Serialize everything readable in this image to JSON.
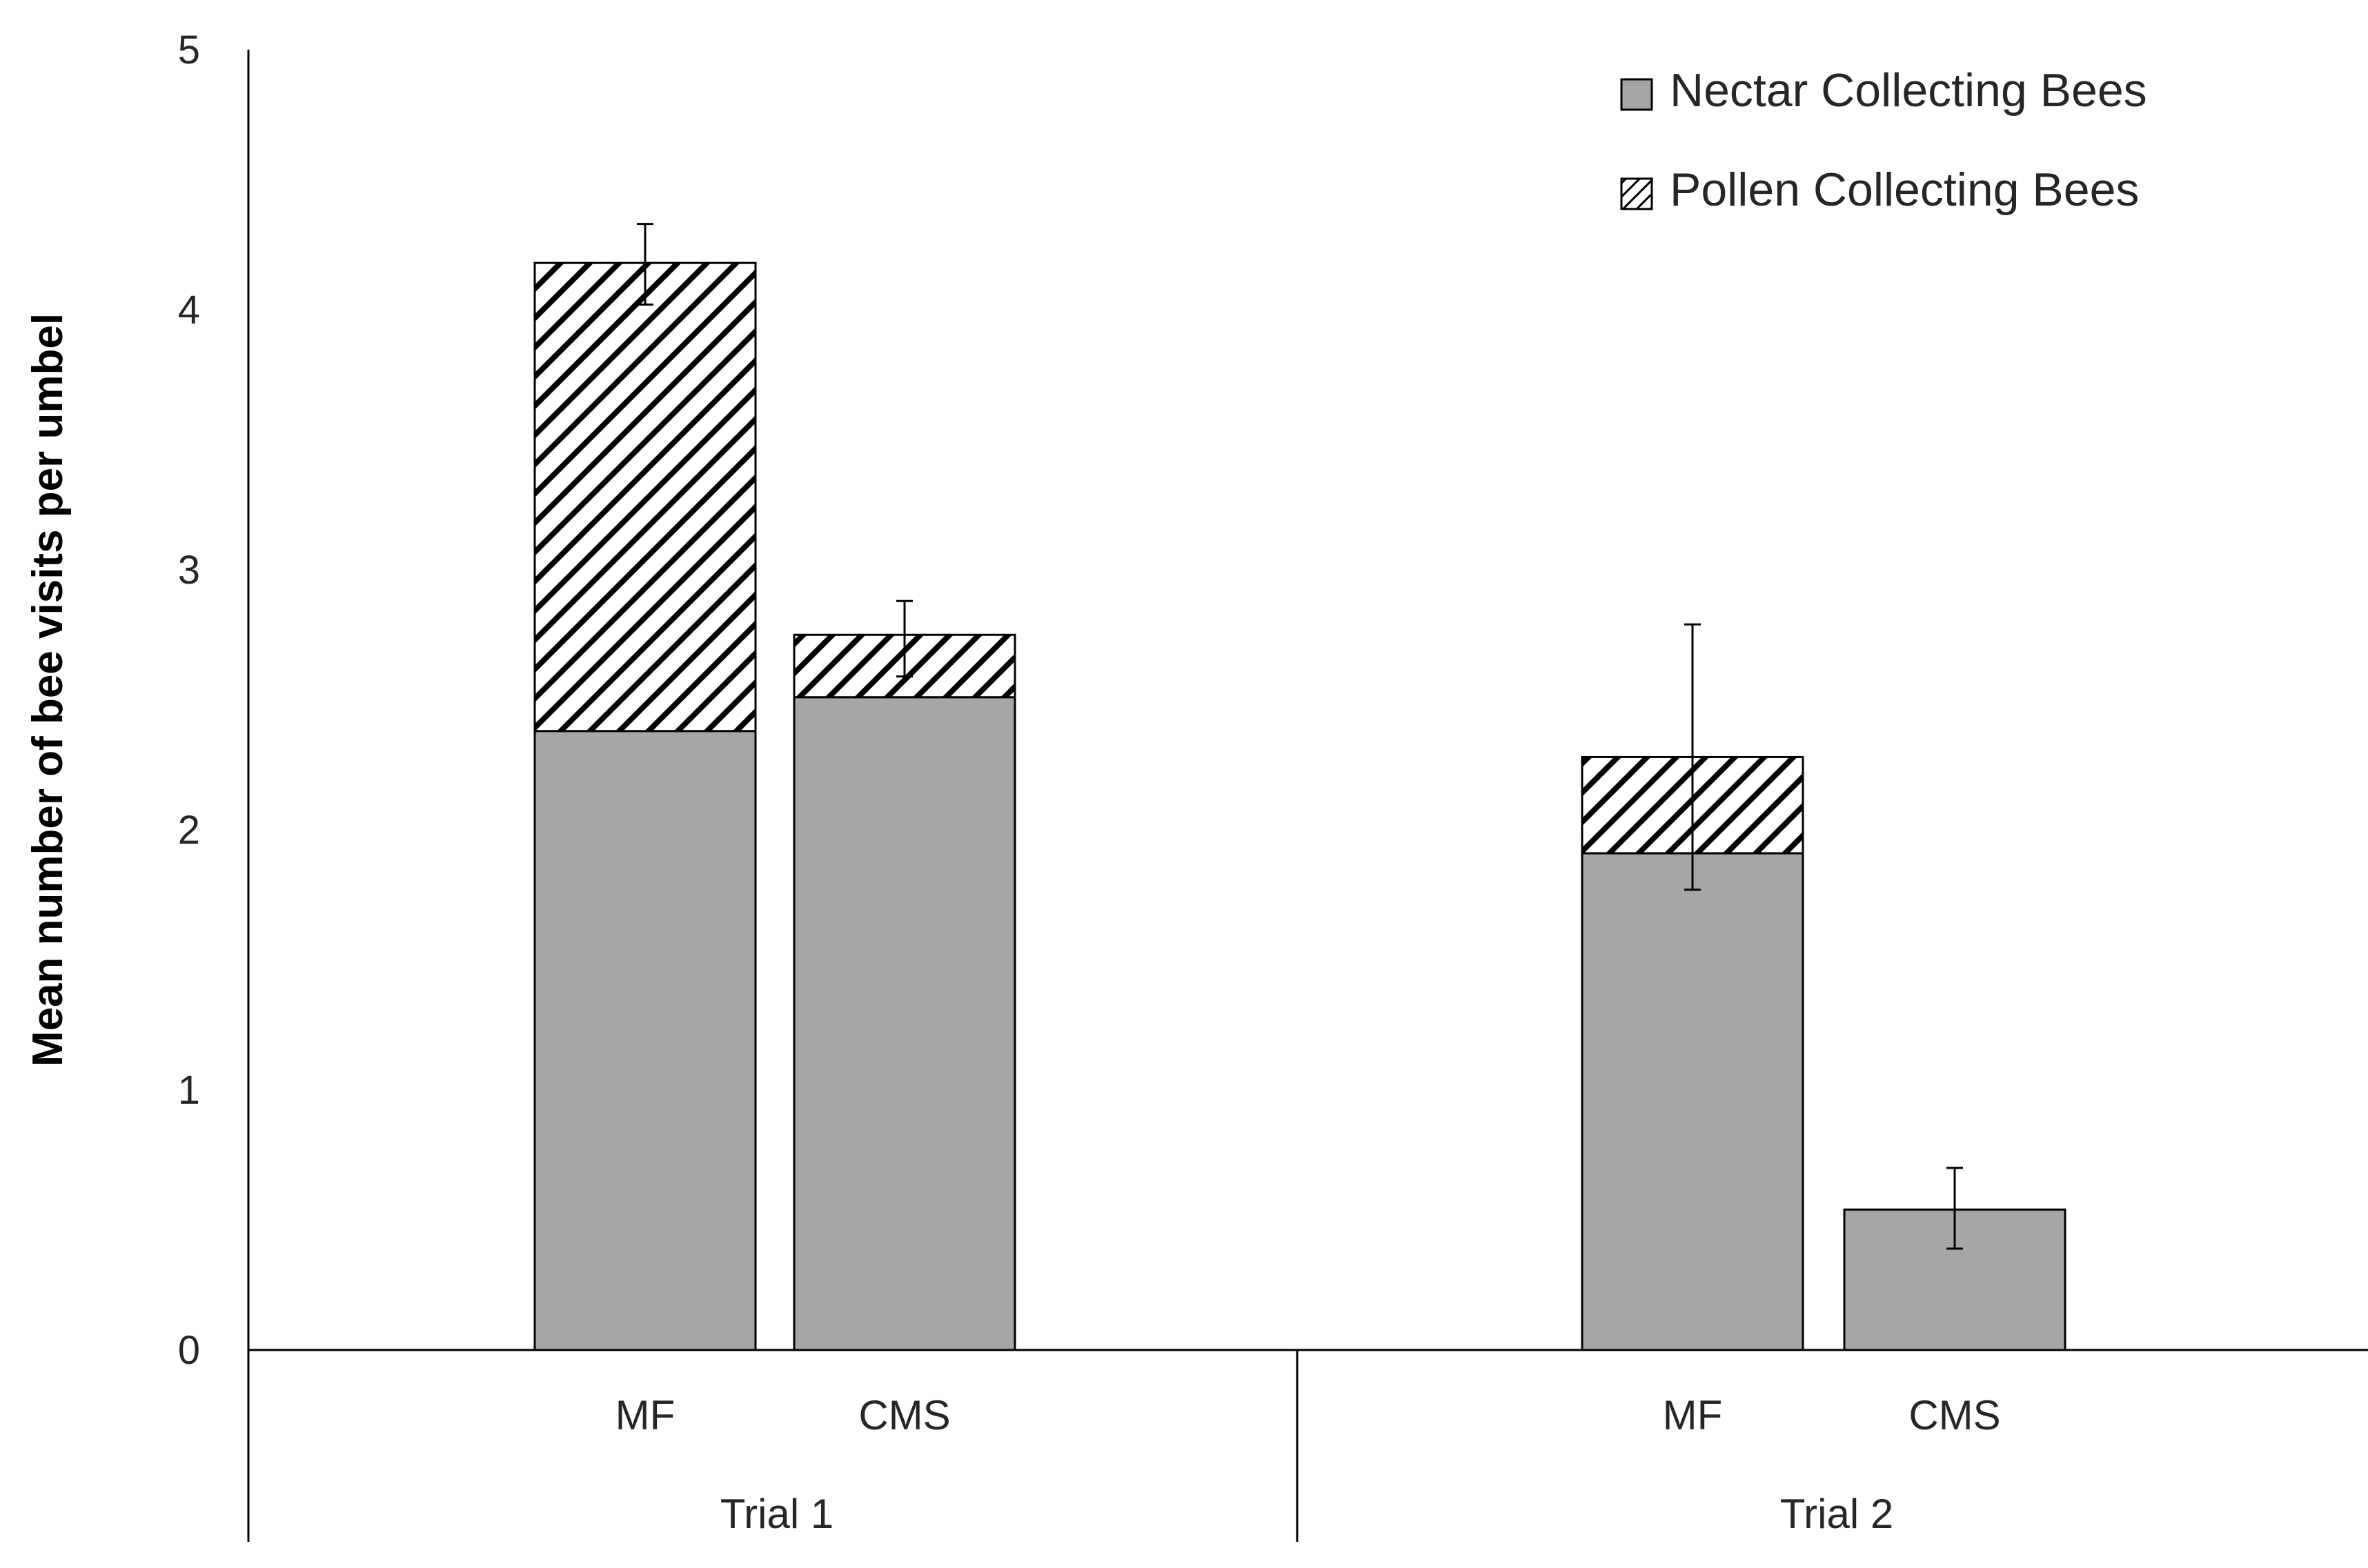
{
  "chart_data": {
    "type": "bar",
    "stacked": true,
    "ylabel": "Mean number of bee visits per umbel",
    "xlabel": "",
    "title": "",
    "ylim": [
      0,
      5
    ],
    "yticks": [
      0,
      1,
      2,
      3,
      4,
      5
    ],
    "grid": false,
    "legend_position": "top-right",
    "groups": [
      {
        "label": "Trial 1",
        "categories": [
          "MF",
          "CMS"
        ]
      },
      {
        "label": "Trial 2",
        "categories": [
          "MF",
          "CMS"
        ]
      }
    ],
    "series": [
      {
        "name": "Nectar Collecting Bees",
        "style": "solid",
        "color": "#a6a6a6",
        "values": [
          2.38,
          2.51,
          1.91,
          0.54
        ]
      },
      {
        "name": "Pollen Collecting Bees",
        "style": "diagonal-hatch",
        "color": "#000000",
        "values": [
          1.8,
          0.24,
          0.37,
          0
        ]
      }
    ],
    "error_bars": [
      {
        "low": 4.02,
        "high": 4.33
      },
      {
        "low": 2.59,
        "high": 2.88
      },
      {
        "low": 1.77,
        "high": 2.79
      },
      {
        "low": 0.39,
        "high": 0.7
      }
    ]
  }
}
